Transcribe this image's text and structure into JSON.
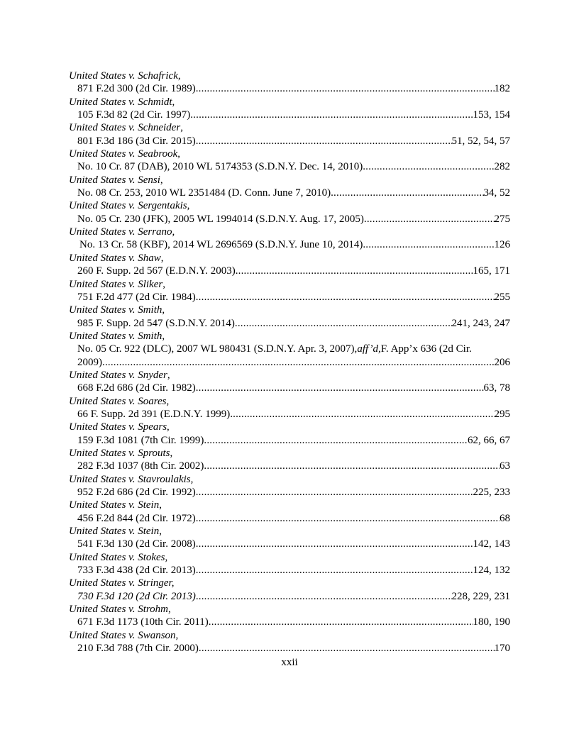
{
  "entries": [
    {
      "case": "United States v. Schafrick",
      "cite": "871 F.2d 300 (2d Cir. 1989)",
      "pages": "182"
    },
    {
      "case": "United States v. Schmidt",
      "cite": "105 F.3d 82 (2d Cir. 1997)",
      "pages": "153, 154"
    },
    {
      "case": "United States v. Schneider",
      "cite": "801 F.3d 186 (3d Cir. 2015)",
      "pages": "51, 52, 54, 57"
    },
    {
      "case": "United States v. Seabrook",
      "cite": "No. 10 Cr. 87 (DAB), 2010 WL 5174353 (S.D.N.Y. Dec. 14, 2010)",
      "pages": "282"
    },
    {
      "case": "United States v. Sensi",
      "cite": "No. 08 Cr. 253, 2010 WL 2351484 (D. Conn. June 7, 2010) ",
      "pages": "34, 52"
    },
    {
      "case": "United States v. Sergentakis",
      "cite": "No. 05 Cr. 230 (JFK), 2005 WL 1994014 (S.D.N.Y. Aug. 17, 2005) ",
      "pages": "275"
    },
    {
      "case": "United States v. Serrano",
      "comma_italic": true,
      "extra_indent": true,
      "cite": "No. 13 Cr. 58 (KBF), 2014 WL 2696569 (S.D.N.Y. June 10, 2014)",
      "pages": "126"
    },
    {
      "case": "United States v. Shaw",
      "cite": "260 F. Supp. 2d 567 (E.D.N.Y. 2003)",
      "pages": "165, 171"
    },
    {
      "case": "United States v. Sliker",
      "cite": "751 F.2d 477 (2d Cir. 1984)",
      "pages": "255"
    },
    {
      "case": "United States v. Smith",
      "cite": "985 F. Supp. 2d 547 (S.D.N.Y. 2014)",
      "pages": "241, 243, 247"
    },
    {
      "case": "United States v. Smith",
      "cite_lead": "No. 05 Cr. 922 (DLC), 2007 WL 980431 (S.D.N.Y. Apr. 3, 2007), ",
      "cite_affd": "aff’d,",
      "cite_tail": " F. App’x 636 (2d Cir.",
      "cite": "2009)",
      "pages": "206"
    },
    {
      "case": "United States v. Snyder",
      "cite": "668 F.2d 686 (2d Cir. 1982)",
      "pages": "63, 78"
    },
    {
      "case": "United States v. Soares",
      "cite": "66 F. Supp. 2d 391 (E.D.N.Y. 1999)",
      "pages": "295"
    },
    {
      "case": "United States v. Spears",
      "cite": "159 F.3d 1081 (7th Cir. 1999)",
      "pages": "62, 66, 67"
    },
    {
      "case": "United States v. Sprouts",
      "cite": "282 F.3d 1037 (8th Cir. 2002)",
      "pages": "63"
    },
    {
      "case": "United States v. Stavroulakis",
      "cite": "952 F.2d 686 (2d Cir. 1992)",
      "pages": "225, 233"
    },
    {
      "case": "United States v. Stein",
      "cite": "456 F.2d 844 (2d Cir. 1972)",
      "pages": "68"
    },
    {
      "case": "United States v. Stein",
      "cite": "541 F.3d 130 (2d Cir. 2008)",
      "pages": "142, 143"
    },
    {
      "case": "United States v. Stokes",
      "cite": "733 F.3d 438 (2d Cir. 2013)",
      "pages": "124, 132"
    },
    {
      "case": "United States v. Stringer",
      "comma_italic": true,
      "cite_italic": true,
      "cite": "730 F.3d 120 (2d Cir. 2013)",
      "pages": "228, 229, 231"
    },
    {
      "case": "United States v. Strohm",
      "cite": "671 F.3d 1173 (10th Cir. 2011)",
      "pages": "180, 190"
    },
    {
      "case": "United States v. Swanson",
      "cite": "210 F.3d 788 (7th Cir. 2000)",
      "pages": "170"
    }
  ],
  "page_number": "xxii"
}
